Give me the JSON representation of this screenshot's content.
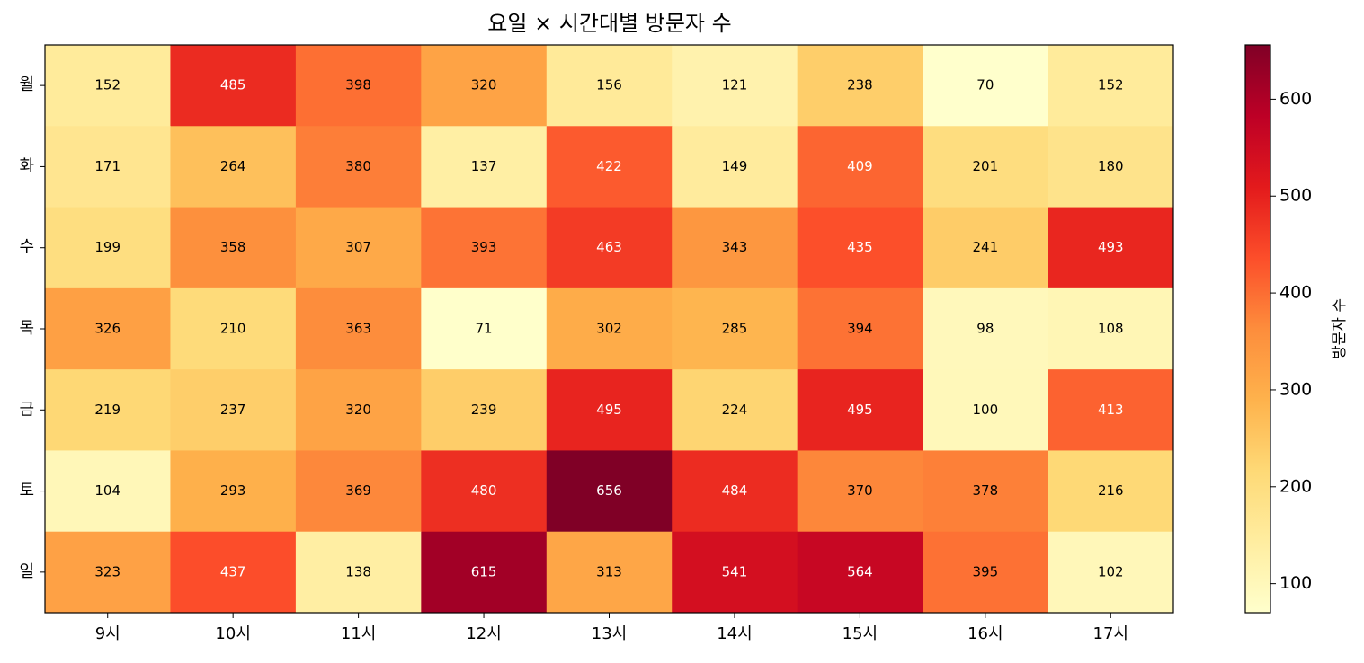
{
  "chart_data": {
    "type": "heatmap",
    "title": "요일 × 시간대별 방문자 수",
    "x_categories": [
      "9시",
      "10시",
      "11시",
      "12시",
      "13시",
      "14시",
      "15시",
      "16시",
      "17시"
    ],
    "y_categories": [
      "월",
      "화",
      "수",
      "목",
      "금",
      "토",
      "일"
    ],
    "values": [
      [
        152,
        485,
        398,
        320,
        156,
        121,
        238,
        70,
        152
      ],
      [
        171,
        264,
        380,
        137,
        422,
        149,
        409,
        201,
        180
      ],
      [
        199,
        358,
        307,
        393,
        463,
        343,
        435,
        241,
        493
      ],
      [
        326,
        210,
        363,
        71,
        302,
        285,
        394,
        98,
        108
      ],
      [
        219,
        237,
        320,
        239,
        495,
        224,
        495,
        100,
        413
      ],
      [
        104,
        293,
        369,
        480,
        656,
        484,
        370,
        378,
        216
      ],
      [
        323,
        437,
        138,
        615,
        313,
        541,
        564,
        395,
        102
      ]
    ],
    "colormap": "YlOrRd",
    "colorbar": {
      "label": "방문자 수",
      "lim": [
        70,
        656
      ],
      "ticks": [
        100,
        200,
        300,
        400,
        500,
        600
      ]
    }
  }
}
